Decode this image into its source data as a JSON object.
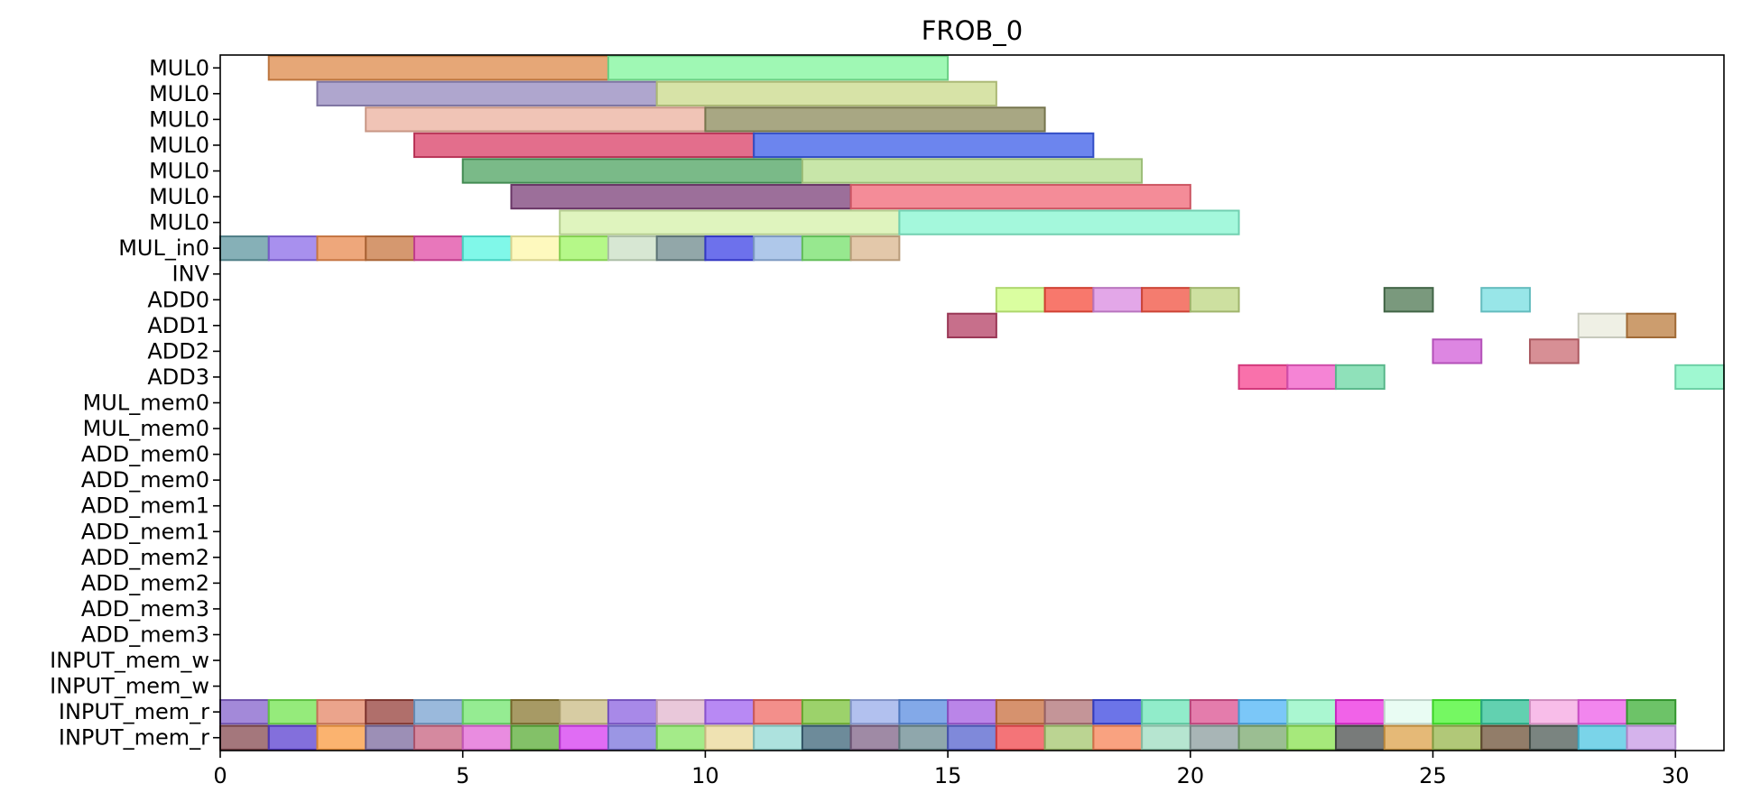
{
  "chart_data": {
    "type": "gantt",
    "title": "FROB_0",
    "xlim": [
      0,
      31
    ],
    "x_ticks": [
      0,
      5,
      10,
      15,
      20,
      25,
      30
    ],
    "grid": false,
    "rows": [
      "MUL0",
      "MUL0",
      "MUL0",
      "MUL0",
      "MUL0",
      "MUL0",
      "MUL0",
      "MUL_in0",
      "INV",
      "ADD0",
      "ADD1",
      "ADD2",
      "ADD3",
      "MUL_mem0",
      "MUL_mem0",
      "ADD_mem0",
      "ADD_mem0",
      "ADD_mem1",
      "ADD_mem1",
      "ADD_mem2",
      "ADD_mem2",
      "ADD_mem3",
      "ADD_mem3",
      "INPUT_mem_w",
      "INPUT_mem_w",
      "INPUT_mem_r",
      "INPUT_mem_r"
    ],
    "bars": [
      {
        "row": 0,
        "start": 1,
        "end": 8,
        "color": "#dd8a4a"
      },
      {
        "row": 0,
        "start": 8,
        "end": 15,
        "color": "#7ff59b"
      },
      {
        "row": 1,
        "start": 2,
        "end": 9,
        "color": "#9488bd"
      },
      {
        "row": 1,
        "start": 9,
        "end": 16,
        "color": "#c9d98a"
      },
      {
        "row": 2,
        "start": 3,
        "end": 10,
        "color": "#ebb09d"
      },
      {
        "row": 2,
        "start": 10,
        "end": 17,
        "color": "#8b8a5a"
      },
      {
        "row": 3,
        "start": 4,
        "end": 11,
        "color": "#d93d66"
      },
      {
        "row": 3,
        "start": 11,
        "end": 18,
        "color": "#3b5ce8"
      },
      {
        "row": 4,
        "start": 5,
        "end": 12,
        "color": "#4ea360"
      },
      {
        "row": 4,
        "start": 12,
        "end": 19,
        "color": "#b6de8c"
      },
      {
        "row": 5,
        "start": 6,
        "end": 13,
        "color": "#7b3f78"
      },
      {
        "row": 5,
        "start": 13,
        "end": 20,
        "color": "#f06575"
      },
      {
        "row": 6,
        "start": 7,
        "end": 14,
        "color": "#d4f0a8"
      },
      {
        "row": 6,
        "start": 14,
        "end": 21,
        "color": "#85f5d0"
      },
      {
        "row": 7,
        "start": 0,
        "end": 1,
        "color": "#5e959f"
      },
      {
        "row": 7,
        "start": 1,
        "end": 2,
        "color": "#8b6be8"
      },
      {
        "row": 7,
        "start": 2,
        "end": 3,
        "color": "#e88a4f"
      },
      {
        "row": 7,
        "start": 3,
        "end": 4,
        "color": "#c7763f"
      },
      {
        "row": 7,
        "start": 4,
        "end": 5,
        "color": "#e049a4"
      },
      {
        "row": 7,
        "start": 5,
        "end": 6,
        "color": "#55f5e2"
      },
      {
        "row": 7,
        "start": 6,
        "end": 7,
        "color": "#fdf7a8"
      },
      {
        "row": 7,
        "start": 7,
        "end": 8,
        "color": "#9cf560"
      },
      {
        "row": 7,
        "start": 8,
        "end": 9,
        "color": "#cadfc4"
      },
      {
        "row": 7,
        "start": 9,
        "end": 10,
        "color": "#6e8a8c"
      },
      {
        "row": 7,
        "start": 10,
        "end": 11,
        "color": "#3c41e5"
      },
      {
        "row": 7,
        "start": 11,
        "end": 12,
        "color": "#94b5e3"
      },
      {
        "row": 7,
        "start": 12,
        "end": 13,
        "color": "#74e06a"
      },
      {
        "row": 7,
        "start": 13,
        "end": 14,
        "color": "#d9b68e"
      },
      {
        "row": 9,
        "start": 16,
        "end": 17,
        "color": "#cdfd80"
      },
      {
        "row": 9,
        "start": 17,
        "end": 18,
        "color": "#f54b3b"
      },
      {
        "row": 9,
        "start": 18,
        "end": 19,
        "color": "#d98ae0"
      },
      {
        "row": 9,
        "start": 19,
        "end": 20,
        "color": "#f0503f"
      },
      {
        "row": 9,
        "start": 20,
        "end": 21,
        "color": "#bcd580"
      },
      {
        "row": 9,
        "start": 24,
        "end": 25,
        "color": "#4d7752"
      },
      {
        "row": 9,
        "start": 26,
        "end": 27,
        "color": "#76dde0"
      },
      {
        "row": 10,
        "start": 15,
        "end": 16,
        "color": "#b43f64"
      },
      {
        "row": 10,
        "start": 28,
        "end": 29,
        "color": "#e9ebdc"
      },
      {
        "row": 10,
        "start": 29,
        "end": 30,
        "color": "#bb7c3e"
      },
      {
        "row": 11,
        "start": 25,
        "end": 26,
        "color": "#d25ed8"
      },
      {
        "row": 11,
        "start": 27,
        "end": 28,
        "color": "#c96a72"
      },
      {
        "row": 12,
        "start": 21,
        "end": 22,
        "color": "#f7428f"
      },
      {
        "row": 12,
        "start": 22,
        "end": 23,
        "color": "#f25bc7"
      },
      {
        "row": 12,
        "start": 23,
        "end": 24,
        "color": "#6ad7a3"
      },
      {
        "row": 12,
        "start": 30,
        "end": 31,
        "color": "#7ff5c2"
      },
      {
        "row": 25,
        "start": 0,
        "end": 1,
        "color": "#8461cc"
      },
      {
        "row": 25,
        "start": 1,
        "end": 2,
        "color": "#71e44f"
      },
      {
        "row": 25,
        "start": 2,
        "end": 3,
        "color": "#e48565"
      },
      {
        "row": 25,
        "start": 3,
        "end": 4,
        "color": "#953f3a"
      },
      {
        "row": 25,
        "start": 4,
        "end": 5,
        "color": "#78a1d0"
      },
      {
        "row": 25,
        "start": 5,
        "end": 6,
        "color": "#72e66e"
      },
      {
        "row": 25,
        "start": 6,
        "end": 7,
        "color": "#8a7832"
      },
      {
        "row": 25,
        "start": 7,
        "end": 8,
        "color": "#c9bb84"
      },
      {
        "row": 25,
        "start": 8,
        "end": 9,
        "color": "#8b62e0"
      },
      {
        "row": 25,
        "start": 9,
        "end": 10,
        "color": "#e1b6cd"
      },
      {
        "row": 25,
        "start": 10,
        "end": 11,
        "color": "#a062f0"
      },
      {
        "row": 25,
        "start": 11,
        "end": 12,
        "color": "#ef6a64"
      },
      {
        "row": 25,
        "start": 12,
        "end": 13,
        "color": "#7bc339"
      },
      {
        "row": 25,
        "start": 13,
        "end": 14,
        "color": "#98acea"
      },
      {
        "row": 25,
        "start": 14,
        "end": 15,
        "color": "#5a8ce0"
      },
      {
        "row": 25,
        "start": 15,
        "end": 16,
        "color": "#a35ce0"
      },
      {
        "row": 25,
        "start": 16,
        "end": 17,
        "color": "#c86e3d"
      },
      {
        "row": 25,
        "start": 17,
        "end": 18,
        "color": "#b07276"
      },
      {
        "row": 25,
        "start": 18,
        "end": 19,
        "color": "#3b46e0"
      },
      {
        "row": 25,
        "start": 19,
        "end": 20,
        "color": "#6ce5b8"
      },
      {
        "row": 25,
        "start": 20,
        "end": 21,
        "color": "#db5090"
      },
      {
        "row": 25,
        "start": 21,
        "end": 22,
        "color": "#4fb4f5"
      },
      {
        "row": 25,
        "start": 22,
        "end": 23,
        "color": "#8ef4c1"
      },
      {
        "row": 25,
        "start": 23,
        "end": 24,
        "color": "#ec2ee0"
      },
      {
        "row": 25,
        "start": 24,
        "end": 25,
        "color": "#e2fbef"
      },
      {
        "row": 25,
        "start": 25,
        "end": 26,
        "color": "#47f52d"
      },
      {
        "row": 25,
        "start": 26,
        "end": 27,
        "color": "#2ec296"
      },
      {
        "row": 25,
        "start": 27,
        "end": 28,
        "color": "#f5a7e2"
      },
      {
        "row": 25,
        "start": 28,
        "end": 29,
        "color": "#ed5de8"
      },
      {
        "row": 25,
        "start": 29,
        "end": 30,
        "color": "#3caf36"
      },
      {
        "row": 26,
        "start": 0,
        "end": 1,
        "color": "#864a50"
      },
      {
        "row": 26,
        "start": 1,
        "end": 2,
        "color": "#5a3fd0"
      },
      {
        "row": 26,
        "start": 2,
        "end": 3,
        "color": "#fa9a3f"
      },
      {
        "row": 26,
        "start": 3,
        "end": 4,
        "color": "#7b6a9e"
      },
      {
        "row": 26,
        "start": 4,
        "end": 5,
        "color": "#c7627f"
      },
      {
        "row": 26,
        "start": 5,
        "end": 6,
        "color": "#e266d6"
      },
      {
        "row": 26,
        "start": 6,
        "end": 7,
        "color": "#5aac36"
      },
      {
        "row": 26,
        "start": 7,
        "end": 8,
        "color": "#d63bf0"
      },
      {
        "row": 26,
        "start": 8,
        "end": 9,
        "color": "#7a73db"
      },
      {
        "row": 26,
        "start": 9,
        "end": 10,
        "color": "#86e462"
      },
      {
        "row": 26,
        "start": 10,
        "end": 11,
        "color": "#ead898"
      },
      {
        "row": 26,
        "start": 11,
        "end": 12,
        "color": "#92d8d3"
      },
      {
        "row": 26,
        "start": 12,
        "end": 13,
        "color": "#3c6478"
      },
      {
        "row": 26,
        "start": 13,
        "end": 14,
        "color": "#7f6387"
      },
      {
        "row": 26,
        "start": 14,
        "end": 15,
        "color": "#6a8a90"
      },
      {
        "row": 26,
        "start": 15,
        "end": 16,
        "color": "#5461cd"
      },
      {
        "row": 26,
        "start": 16,
        "end": 17,
        "color": "#f0464b"
      },
      {
        "row": 26,
        "start": 17,
        "end": 18,
        "color": "#a4c56d"
      },
      {
        "row": 26,
        "start": 18,
        "end": 19,
        "color": "#f78356"
      },
      {
        "row": 26,
        "start": 19,
        "end": 20,
        "color": "#9edcc0"
      },
      {
        "row": 26,
        "start": 20,
        "end": 21,
        "color": "#8b9c9d"
      },
      {
        "row": 26,
        "start": 21,
        "end": 22,
        "color": "#79a86e"
      },
      {
        "row": 26,
        "start": 22,
        "end": 23,
        "color": "#88e24f"
      },
      {
        "row": 26,
        "start": 23,
        "end": 24,
        "color": "#4b4f4e"
      },
      {
        "row": 26,
        "start": 24,
        "end": 25,
        "color": "#dca249"
      },
      {
        "row": 26,
        "start": 25,
        "end": 26,
        "color": "#97b64b"
      },
      {
        "row": 26,
        "start": 26,
        "end": 27,
        "color": "#6d5237"
      },
      {
        "row": 26,
        "start": 27,
        "end": 28,
        "color": "#4d5b55"
      },
      {
        "row": 26,
        "start": 28,
        "end": 29,
        "color": "#4ec6e2"
      },
      {
        "row": 26,
        "start": 29,
        "end": 30,
        "color": "#c79ae6"
      }
    ]
  }
}
